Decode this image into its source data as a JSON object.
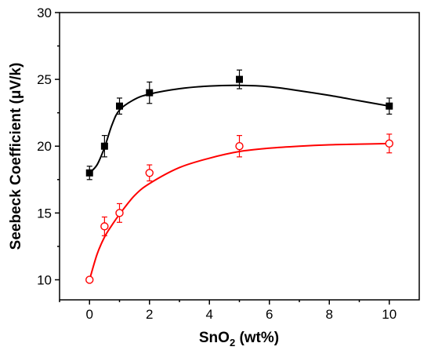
{
  "chart_data": {
    "type": "scatter",
    "title": "",
    "xlabel": {
      "main": "SnO",
      "sub": "2",
      "rest": " (wt%)"
    },
    "ylabel": "Seebeck Coefficient (μV/k)",
    "xlim": [
      -1,
      11
    ],
    "ylim": [
      8.5,
      30
    ],
    "xticks": [
      0,
      2,
      4,
      6,
      8,
      10
    ],
    "yticks": [
      10,
      15,
      20,
      25,
      30
    ],
    "grid": false,
    "series": [
      {
        "marker": "filled-square",
        "color": "#000000",
        "x": [
          0,
          0.5,
          1,
          2,
          5,
          10
        ],
        "y": [
          18.0,
          20.0,
          23.0,
          24.0,
          25.0,
          23.0
        ],
        "error": [
          0.5,
          0.8,
          0.6,
          0.8,
          0.7,
          0.6
        ],
        "fit": {
          "x": [
            0,
            0.25,
            0.5,
            0.75,
            1,
            1.5,
            2,
            3,
            4,
            5,
            6,
            7,
            8,
            9,
            10
          ],
          "y": [
            18.0,
            18.6,
            19.9,
            21.6,
            22.7,
            23.5,
            23.9,
            24.3,
            24.5,
            24.55,
            24.45,
            24.15,
            23.8,
            23.4,
            23.0
          ]
        }
      },
      {
        "marker": "open-circle",
        "color": "#ff0000",
        "x": [
          0,
          0.5,
          1,
          2,
          5,
          10
        ],
        "y": [
          10.0,
          14.0,
          15.0,
          18.0,
          20.0,
          20.2
        ],
        "error": [
          0.0,
          0.7,
          0.7,
          0.6,
          0.8,
          0.7
        ],
        "fit": {
          "x": [
            0,
            0.25,
            0.5,
            0.75,
            1,
            1.5,
            2,
            3,
            4,
            5,
            6,
            7,
            8,
            9,
            10
          ],
          "y": [
            10.0,
            11.9,
            13.2,
            14.1,
            14.9,
            16.3,
            17.2,
            18.4,
            19.1,
            19.6,
            19.85,
            20.0,
            20.1,
            20.15,
            20.2
          ]
        }
      }
    ]
  }
}
